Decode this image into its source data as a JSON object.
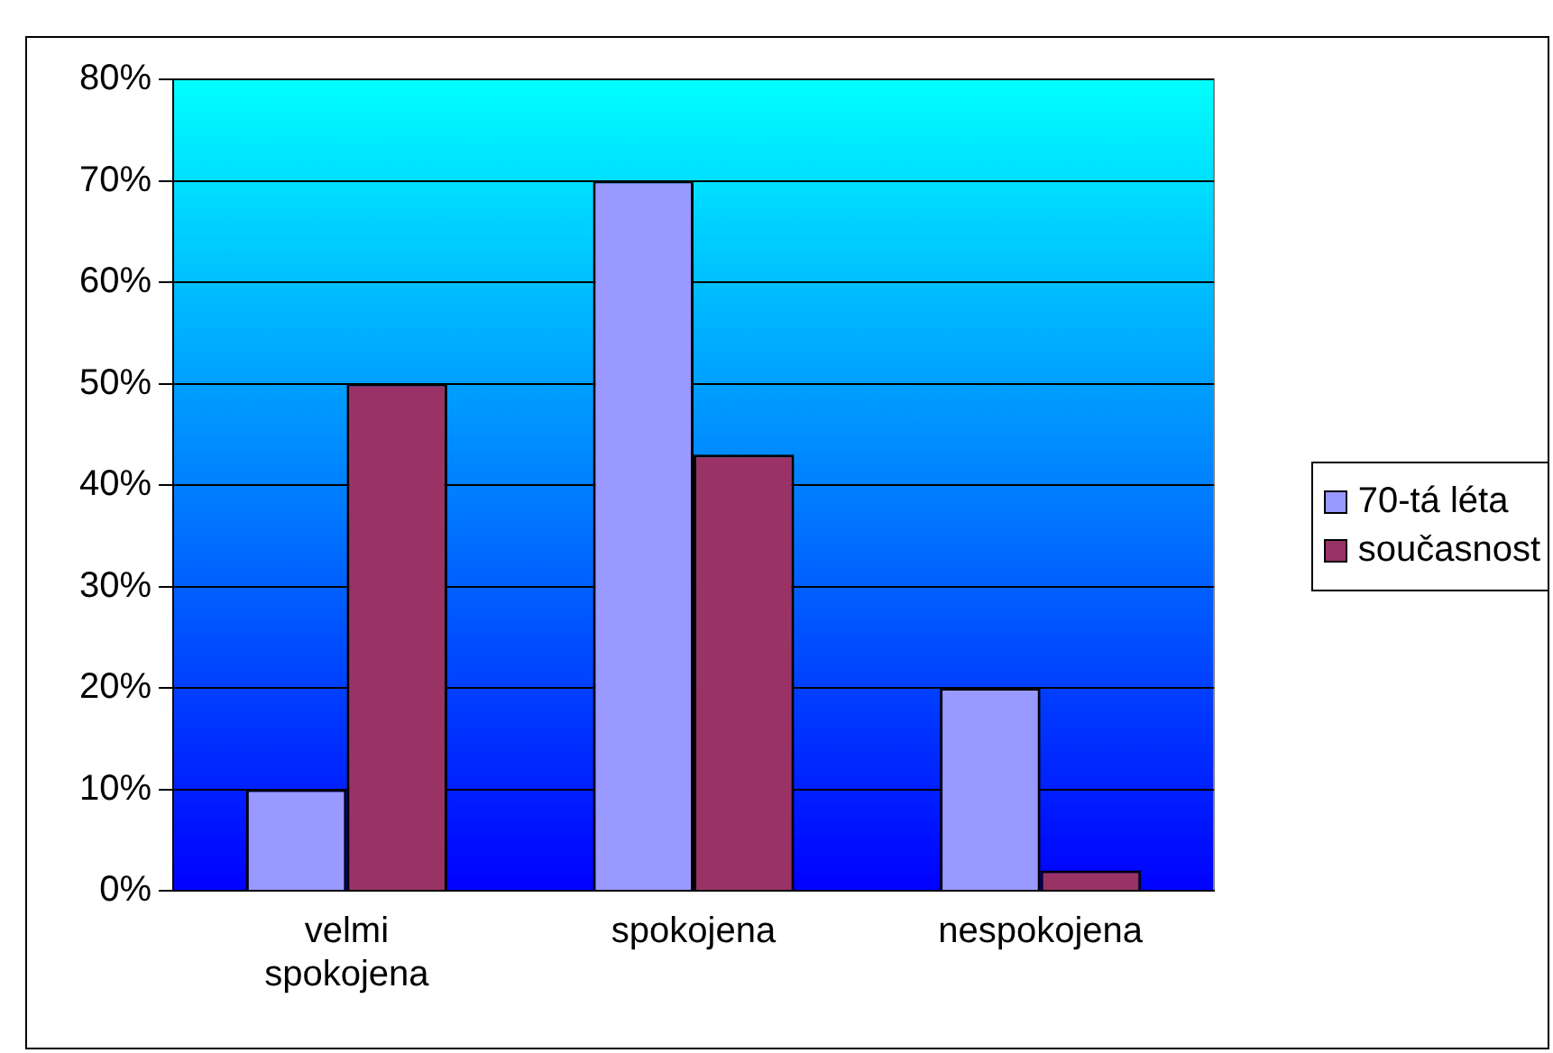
{
  "chart_data": {
    "type": "bar",
    "categories": [
      "velmi\nspokojena",
      "spokojena",
      "nespokojena"
    ],
    "series": [
      {
        "name": "70-tá léta",
        "color": "#9999ff",
        "values": [
          10,
          70,
          20
        ]
      },
      {
        "name": "současnost",
        "color": "#993366",
        "values": [
          50,
          43,
          2
        ]
      }
    ],
    "ylim": [
      0,
      80
    ],
    "yticks": [
      {
        "value": 0,
        "label": "0%"
      },
      {
        "value": 10,
        "label": "10%"
      },
      {
        "value": 20,
        "label": "20%"
      },
      {
        "value": 30,
        "label": "30%"
      },
      {
        "value": 40,
        "label": "40%"
      },
      {
        "value": 50,
        "label": "50%"
      },
      {
        "value": 60,
        "label": "60%"
      },
      {
        "value": 70,
        "label": "70%"
      },
      {
        "value": 80,
        "label": "80%"
      }
    ],
    "grid": "y",
    "legend": "right"
  }
}
